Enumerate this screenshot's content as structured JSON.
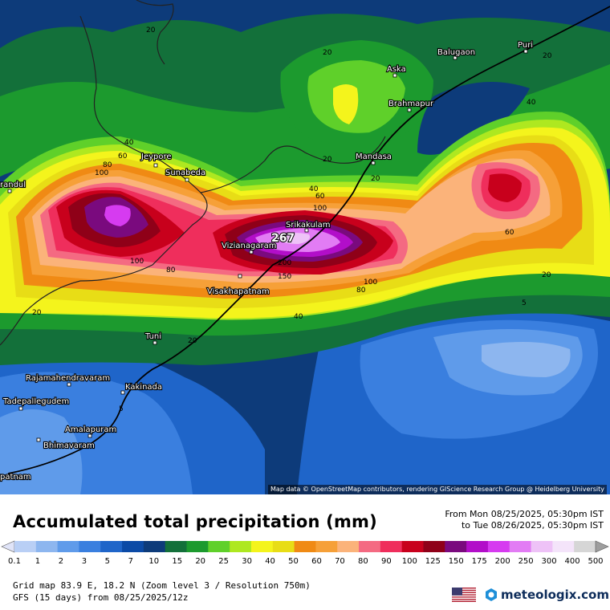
{
  "legend": {
    "title": "Accumulated total precipitation (mm)",
    "levels": [
      "0.1",
      "1",
      "2",
      "3",
      "5",
      "7",
      "10",
      "15",
      "20",
      "25",
      "30",
      "40",
      "50",
      "60",
      "70",
      "80",
      "90",
      "100",
      "125",
      "150",
      "175",
      "200",
      "250",
      "300",
      "400",
      "500"
    ],
    "colors": [
      "#e0e4f8",
      "#b9cff5",
      "#8db6ef",
      "#5f9bea",
      "#3a7fdf",
      "#1f65c9",
      "#0b4aa6",
      "#0d3b7a",
      "#13703a",
      "#1c9a2e",
      "#5fd02a",
      "#aee820",
      "#f4f41c",
      "#e8dd16",
      "#f08a14",
      "#f6a038",
      "#fbb37a",
      "#f46a82",
      "#ef2e5c",
      "#c8001c",
      "#8f0018",
      "#7a0a7e",
      "#b20ec9",
      "#d63bf0",
      "#e27cf4",
      "#eec2f7",
      "#f4e4fa",
      "#d6d6d6",
      "#9e9e9e"
    ]
  },
  "period": {
    "from": "From Mon 08/25/2025, 05:30pm IST",
    "to": "to Tue 08/26/2025, 05:30pm IST"
  },
  "grid": {
    "line1": "Grid map 83.9 E, 18.2 N (Zoom level 3 / Resolution 750m)",
    "line2": "GFS (15 days) from  08/25/2025/12z"
  },
  "attribution": "Map data © OpenStreetMap contributors, rendering GIScience Research Group @ Heidelberg University",
  "brand": "meteologix.com",
  "max_value": "267",
  "cities": {
    "balugaon": "Balugaon",
    "puri": "Puri",
    "aska": "Aska",
    "brahmapur": "Brahmapur",
    "jeypore": "Jeypore",
    "sunabeda": "Sunabeda",
    "mandasa": "Mandasa",
    "randul": "randul",
    "srikakulam": "Srikakulam",
    "vizianagaram": "Vizianagaram",
    "visakhapatnam": "Visakhapatnam",
    "tuni": "Tuni",
    "rajamahendravaram": "Rajamahendravaram",
    "kakinada": "Kakinada",
    "tadepallegudem": "Tadepallegudem",
    "amalapuram": "Amalapuram",
    "bhimavaram": "Bhimavaram",
    "patnam": "patnam"
  },
  "contours": {
    "c20a": "20",
    "c20b": "20",
    "c20c": "20",
    "c20d": "20",
    "c20e": "20",
    "c20f": "20",
    "c20g": "20",
    "c20h": "20",
    "c40a": "40",
    "c40b": "40",
    "c40c": "40",
    "c40d": "40",
    "c60a": "60",
    "c60b": "60",
    "c60c": "60",
    "c80a": "80",
    "c80b": "80",
    "c80c": "80",
    "c100a": "100",
    "c100b": "100",
    "c100c": "100",
    "c100d": "100",
    "c150": "150",
    "c200": "200",
    "c5a": "5",
    "c5b": "5"
  }
}
